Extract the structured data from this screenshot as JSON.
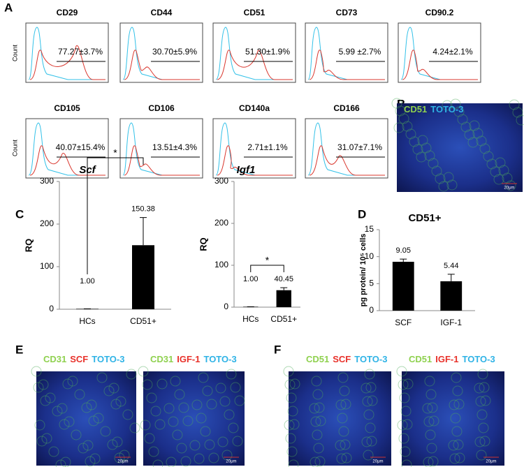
{
  "panel_labels": {
    "a": "A",
    "b": "B",
    "c": "C",
    "d": "D",
    "e": "E",
    "f": "F"
  },
  "flow": {
    "y_label": "Count",
    "plots": [
      {
        "marker": "CD29",
        "stat": "77.27±3.7%"
      },
      {
        "marker": "CD44",
        "stat": "30.70±5.9%"
      },
      {
        "marker": "CD51",
        "stat": "51.30±1.9%"
      },
      {
        "marker": "CD73",
        "stat": "5.99 ±2.7%"
      },
      {
        "marker": "CD90.2",
        "stat": "4.24±2.1%"
      },
      {
        "marker": "CD105",
        "stat": "40.07±15.4%"
      },
      {
        "marker": "CD106",
        "stat": "13.51±4.3%"
      },
      {
        "marker": "CD140a",
        "stat": "2.71±1.1%"
      },
      {
        "marker": "CD166",
        "stat": "31.07±7.1%"
      }
    ]
  },
  "panel_b": {
    "stains": [
      {
        "text": "CD51",
        "color": "#8fd14f"
      },
      {
        "text": "TOTO-3",
        "color": "#2fb3e6"
      }
    ],
    "scale": "20μm"
  },
  "chart_data": [
    {
      "type": "bar",
      "title": "Scf",
      "y_label": "RQ",
      "categories": [
        "HCs",
        "CD51+"
      ],
      "values": [
        1.0,
        150.38
      ],
      "value_labels": [
        "1.00",
        "150.38"
      ],
      "errors": [
        0,
        65
      ],
      "color": "#000000",
      "ylim": [
        0,
        300
      ],
      "yticks": [
        0,
        100,
        200,
        300
      ],
      "annotation": "*"
    },
    {
      "type": "bar",
      "title": "Igf1",
      "y_label": "RQ",
      "categories": [
        "HCs",
        "CD51+"
      ],
      "values": [
        1.0,
        40.45
      ],
      "value_labels": [
        "1.00",
        "40.45"
      ],
      "errors": [
        0,
        6
      ],
      "color": "#000000",
      "ylim": [
        0,
        300
      ],
      "yticks": [
        0,
        100,
        200,
        300
      ],
      "annotation": "*"
    },
    {
      "type": "bar",
      "title": "CD51+",
      "y_label": "pg protein/ 10⁵ cells",
      "categories": [
        "SCF",
        "IGF-1"
      ],
      "values": [
        9.05,
        5.44
      ],
      "value_labels": [
        "9.05",
        "5.44"
      ],
      "errors": [
        0.5,
        1.3
      ],
      "color": "#000000",
      "ylim": [
        0,
        15
      ],
      "yticks": [
        0,
        5,
        10,
        15
      ]
    }
  ],
  "images": [
    {
      "stains": [
        {
          "text": "CD31",
          "color": "#8fd14f"
        },
        {
          "text": "SCF",
          "color": "#e8312a"
        },
        {
          "text": "TOTO-3",
          "color": "#2fb3e6"
        }
      ],
      "scale": "20μm"
    },
    {
      "stains": [
        {
          "text": "CD31",
          "color": "#8fd14f"
        },
        {
          "text": "IGF-1",
          "color": "#e8312a"
        },
        {
          "text": "TOTO-3",
          "color": "#2fb3e6"
        }
      ],
      "scale": "20μm"
    },
    {
      "stains": [
        {
          "text": "CD51",
          "color": "#8fd14f"
        },
        {
          "text": "SCF",
          "color": "#e8312a"
        },
        {
          "text": "TOTO-3",
          "color": "#2fb3e6"
        }
      ],
      "scale": "20μm"
    },
    {
      "stains": [
        {
          "text": "CD51",
          "color": "#8fd14f"
        },
        {
          "text": "IGF-1",
          "color": "#e8312a"
        },
        {
          "text": "TOTO-3",
          "color": "#2fb3e6"
        }
      ],
      "scale": "20μm"
    }
  ]
}
